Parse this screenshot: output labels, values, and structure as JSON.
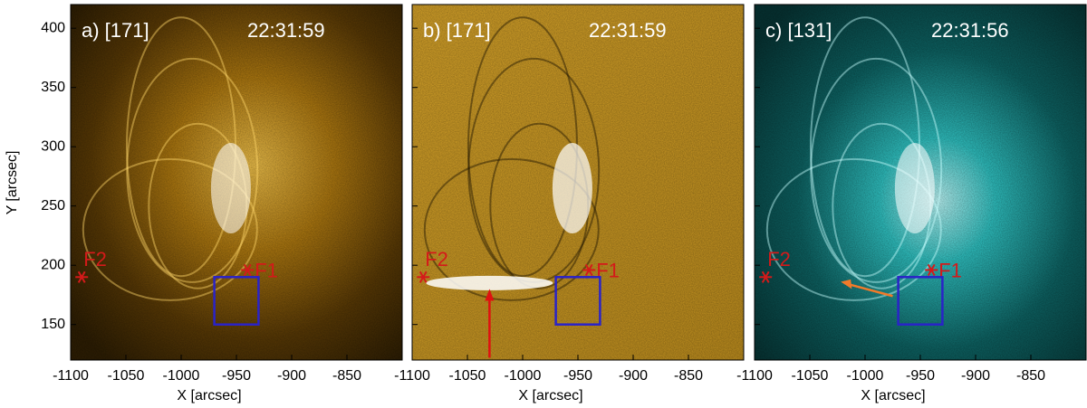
{
  "axes": {
    "xlabel": "X [arcsec]",
    "ylabel": "Y [arcsec]",
    "xlim": [
      -1100,
      -800
    ],
    "ylim": [
      120,
      420
    ],
    "xticks": [
      -1100,
      -1050,
      -1000,
      -950,
      -900,
      -850
    ],
    "yticks": [
      150,
      200,
      250,
      300,
      350,
      400
    ]
  },
  "panels": [
    {
      "label": "a) [171]",
      "time": "22:31:59",
      "markers": [
        "F1",
        "F2"
      ]
    },
    {
      "label": "b) [171]",
      "time": "22:31:59",
      "markers": [
        "F1",
        "F2"
      ]
    },
    {
      "label": "c) [131]",
      "time": "22:31:56",
      "markers": [
        "F1",
        "F2"
      ]
    }
  ]
}
